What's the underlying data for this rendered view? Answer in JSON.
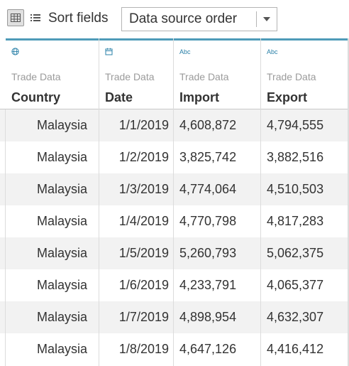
{
  "toolbar": {
    "grid_view_icon": "grid-view-icon",
    "list_view_icon": "list-view-icon",
    "sort_label": "Sort fields",
    "sort_value": "Data source order"
  },
  "columns": [
    {
      "type_icon": "globe-icon",
      "type_text": "",
      "source": "Trade Data",
      "name": "Country"
    },
    {
      "type_icon": "calendar-icon",
      "type_text": "",
      "source": "Trade Data",
      "name": "Date"
    },
    {
      "type_icon": "string-type-icon",
      "type_text": "Abc",
      "source": "Trade Data",
      "name": "Import"
    },
    {
      "type_icon": "string-type-icon",
      "type_text": "Abc",
      "source": "Trade Data",
      "name": "Export"
    }
  ],
  "rows": [
    [
      "Malaysia",
      "1/1/2019",
      "4,608,872",
      "4,794,555"
    ],
    [
      "Malaysia",
      "1/2/2019",
      "3,825,742",
      "3,882,516"
    ],
    [
      "Malaysia",
      "1/3/2019",
      "4,774,064",
      "4,510,503"
    ],
    [
      "Malaysia",
      "1/4/2019",
      "4,770,798",
      "4,817,283"
    ],
    [
      "Malaysia",
      "1/5/2019",
      "5,260,793",
      "5,062,375"
    ],
    [
      "Malaysia",
      "1/6/2019",
      "4,233,791",
      "4,065,377"
    ],
    [
      "Malaysia",
      "1/7/2019",
      "4,898,954",
      "4,632,307"
    ],
    [
      "Malaysia",
      "1/8/2019",
      "4,647,126",
      "4,416,412"
    ]
  ],
  "colors": {
    "accent": "#4e9bb8",
    "icon": "#2a80a8",
    "row_alt": "#f2f2f2"
  }
}
